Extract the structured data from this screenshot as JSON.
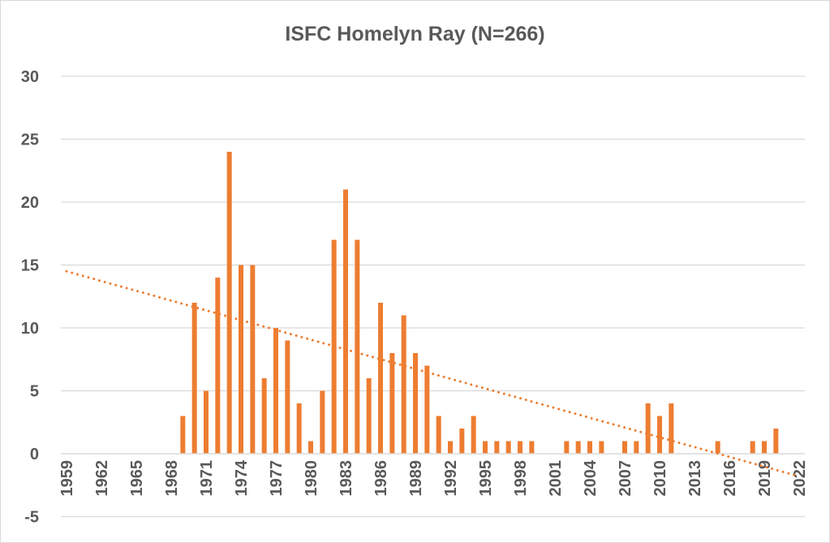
{
  "chart_data": {
    "type": "bar",
    "title": "ISFC Homelyn Ray (N=266)",
    "xlabel": "",
    "ylabel": "",
    "ylim": [
      -5,
      30
    ],
    "yticks": [
      -5,
      0,
      5,
      10,
      15,
      20,
      25,
      30
    ],
    "xlim": [
      1959,
      2022
    ],
    "xticks": [
      1959,
      1962,
      1965,
      1968,
      1971,
      1974,
      1977,
      1980,
      1983,
      1986,
      1989,
      1992,
      1995,
      1998,
      2001,
      2004,
      2007,
      2010,
      2013,
      2016,
      2019,
      2022
    ],
    "grid": true,
    "bar_color": "#ED7D31",
    "series": [
      {
        "name": "Count",
        "x": [
          1969,
          1970,
          1971,
          1972,
          1973,
          1974,
          1975,
          1976,
          1977,
          1978,
          1979,
          1980,
          1981,
          1982,
          1983,
          1984,
          1985,
          1986,
          1987,
          1988,
          1989,
          1990,
          1991,
          1992,
          1993,
          1994,
          1995,
          1996,
          1997,
          1998,
          1999,
          2002,
          2003,
          2004,
          2005,
          2007,
          2008,
          2009,
          2010,
          2011,
          2015,
          2018,
          2019,
          2020
        ],
        "values": [
          3,
          12,
          5,
          14,
          24,
          15,
          15,
          6,
          10,
          9,
          4,
          1,
          5,
          17,
          21,
          17,
          6,
          12,
          8,
          11,
          8,
          7,
          3,
          1,
          2,
          3,
          1,
          1,
          1,
          1,
          1,
          1,
          1,
          1,
          1,
          1,
          1,
          4,
          3,
          4,
          1,
          1,
          1,
          2
        ]
      }
    ],
    "trendline": {
      "type": "linear",
      "style": "dotted",
      "x": [
        1959,
        2022
      ],
      "y": [
        14.5,
        -1.8
      ]
    }
  }
}
